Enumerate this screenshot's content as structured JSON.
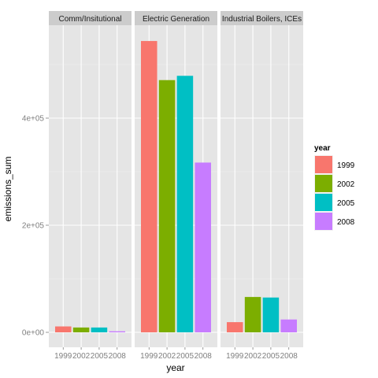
{
  "chart_data": {
    "type": "bar",
    "facets": [
      "Comm/Insitutional",
      "Electric Generation",
      "Industrial Boilers, ICEs"
    ],
    "categories": [
      "1999",
      "2002",
      "2005",
      "2008"
    ],
    "series": [
      {
        "facet": "Comm/Insitutional",
        "values": [
          11000,
          9000,
          9000,
          2000
        ]
      },
      {
        "facet": "Electric Generation",
        "values": [
          544000,
          471000,
          479000,
          317000
        ]
      },
      {
        "facet": "Industrial Boilers, ICEs",
        "values": [
          19000,
          66000,
          65000,
          24000
        ]
      }
    ],
    "xlabel": "year",
    "ylabel": "emissions_sum",
    "ylim": [
      0,
      580000
    ],
    "yticks": [
      0,
      200000,
      400000
    ],
    "ytick_labels": [
      "0e+00",
      "2e+05",
      "4e+05"
    ],
    "legend": {
      "title": "year",
      "position": "right",
      "items": [
        {
          "label": "1999",
          "color": "#F8766D"
        },
        {
          "label": "2002",
          "color": "#7CAE00"
        },
        {
          "label": "2005",
          "color": "#00BFC4"
        },
        {
          "label": "2008",
          "color": "#C77CFF"
        }
      ]
    },
    "grid": true,
    "panel_background": "#E5E5E5",
    "strip_background": "#CCCCCC"
  }
}
